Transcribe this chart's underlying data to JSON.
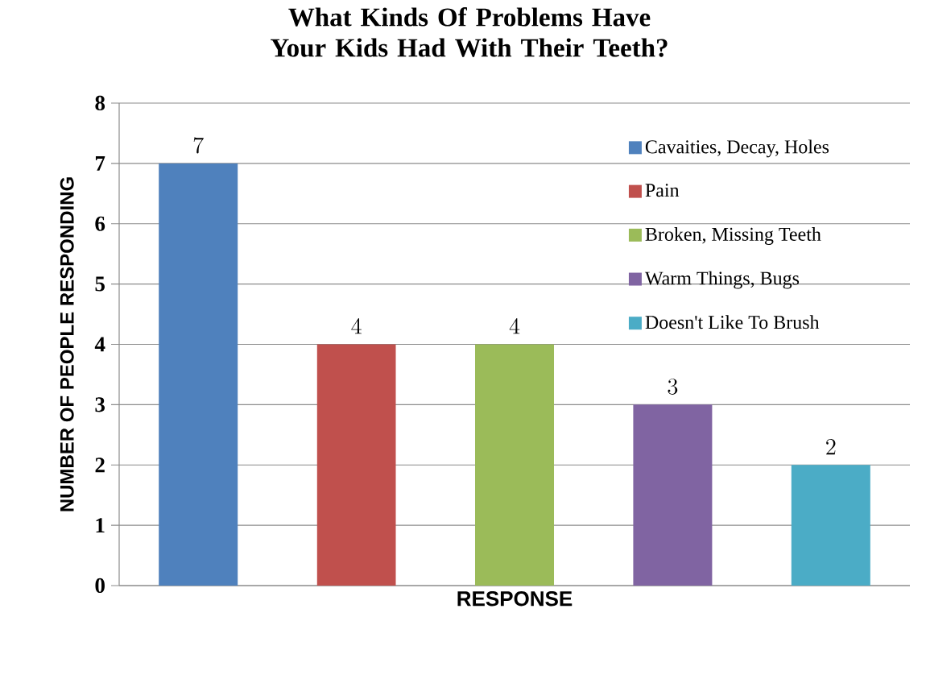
{
  "chart_data": {
    "type": "bar",
    "title": "What Kinds Of Problems Have Your Kids Had With Their Teeth?",
    "xlabel": "RESPONSE",
    "ylabel": "NUMBER OF PEOPLE RESPONDING",
    "categories": [
      null,
      null,
      null,
      null,
      null
    ],
    "series": [
      {
        "name": "Cavaities, Decay, Holes",
        "color": "#4f81bd",
        "values": [
          7,
          null,
          null,
          null,
          null
        ]
      },
      {
        "name": "Pain",
        "color": "#c0504d",
        "values": [
          null,
          4,
          null,
          null,
          null
        ]
      },
      {
        "name": "Broken, Missing Teeth",
        "color": "#9bbb59",
        "values": [
          null,
          null,
          4,
          null,
          null
        ]
      },
      {
        "name": "Warm Things, Bugs",
        "color": "#8064a2",
        "values": [
          null,
          null,
          null,
          3,
          null
        ]
      },
      {
        "name": "Doesn't Like To Brush",
        "color": "#4bacc6",
        "values": [
          null,
          null,
          null,
          null,
          2
        ]
      }
    ],
    "ylim": [
      0,
      8
    ],
    "yticks": [
      0,
      1,
      2,
      3,
      4,
      5,
      6,
      7,
      8
    ],
    "grid": "y",
    "legend": "top right",
    "data_labels": true
  }
}
